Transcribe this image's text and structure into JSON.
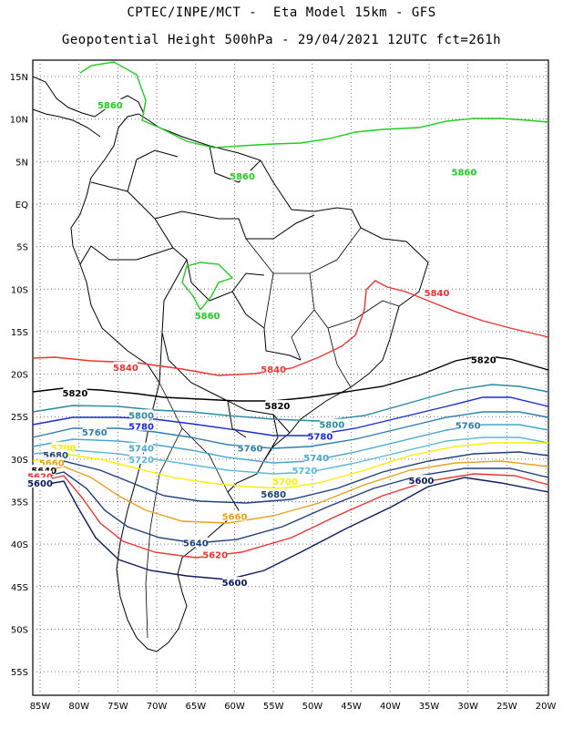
{
  "title": {
    "line1": "CPTEC/INPE/MCT -  Eta Model 15km - GFS",
    "line2": "Geopotential Height 500hPa - 29/04/2021 12UTC fct=261h"
  },
  "axes": {
    "lon_labels": [
      "85W",
      "80W",
      "75W",
      "70W",
      "65W",
      "60W",
      "55W",
      "50W",
      "45W",
      "40W",
      "35W",
      "30W",
      "25W",
      "20W"
    ],
    "lat_labels": [
      "15N",
      "10N",
      "5N",
      "EQ",
      "5S",
      "10S",
      "15S",
      "20S",
      "25S",
      "30S",
      "35S",
      "40S",
      "45S",
      "50S",
      "55S"
    ]
  },
  "colors": {
    "c5860": "#22cc22",
    "c5840": "#ee3333",
    "c5820": "#000000",
    "c5800": "#2a8aa0",
    "c5780": "#1a2ad8",
    "c5760": "#2f7fae",
    "c5740": "#46a6cc",
    "c5720": "#5ab8d8",
    "c5700": "#ffee00",
    "c5680": "#1f3f7a",
    "c5660": "#e8a020",
    "c5600": "#0a1a60"
  },
  "contour_labels": [
    {
      "text": "5860",
      "color": "c5860",
      "lon": -76,
      "lat": 11.7
    },
    {
      "text": "5860",
      "color": "c5860",
      "lon": -59,
      "lat": 3.3
    },
    {
      "text": "5860",
      "color": "c5860",
      "lon": -30.5,
      "lat": 3.8
    },
    {
      "text": "5860",
      "color": "c5860",
      "lon": -63.5,
      "lat": -13.1
    },
    {
      "text": "5840",
      "color": "c5840",
      "lon": -34,
      "lat": -10.4
    },
    {
      "text": "5840",
      "color": "c5840",
      "lon": -74,
      "lat": -19.2
    },
    {
      "text": "5840",
      "color": "c5840",
      "lon": -55,
      "lat": -19.4
    },
    {
      "text": "5820",
      "color": "c5820",
      "lon": -28,
      "lat": -18.3
    },
    {
      "text": "5820",
      "color": "c5820",
      "lon": -80.5,
      "lat": -22.2
    },
    {
      "text": "5820",
      "color": "c5820",
      "lon": -54.5,
      "lat": -23.7
    },
    {
      "text": "5800",
      "color": "c5800",
      "lon": -72,
      "lat": -24.8
    },
    {
      "text": "5800",
      "color": "c5800",
      "lon": -47.5,
      "lat": -25.9
    },
    {
      "text": "5780",
      "color": "c5780",
      "lon": -72,
      "lat": -26.1
    },
    {
      "text": "5780",
      "color": "c5780",
      "lon": -49,
      "lat": -27.3
    },
    {
      "text": "5760",
      "color": "c5760",
      "lon": -78,
      "lat": -26.8
    },
    {
      "text": "5760",
      "color": "c5760",
      "lon": -30,
      "lat": -26.0
    },
    {
      "text": "5760",
      "color": "c5760",
      "lon": -58,
      "lat": -28.7
    },
    {
      "text": "5740",
      "color": "c5740",
      "lon": -72,
      "lat": -28.7
    },
    {
      "text": "5740",
      "color": "c5740",
      "lon": -49.5,
      "lat": -29.8
    },
    {
      "text": "5720",
      "color": "c5720",
      "lon": -72,
      "lat": -30.0
    },
    {
      "text": "5720",
      "color": "c5720",
      "lon": -51,
      "lat": -31.3
    },
    {
      "text": "5700",
      "color": "c5700",
      "lon": -82,
      "lat": -28.6
    },
    {
      "text": "5700",
      "color": "c5700",
      "lon": -53.5,
      "lat": -32.6
    },
    {
      "text": "5680",
      "color": "c5680",
      "lon": -83,
      "lat": -29.5
    },
    {
      "text": "5680",
      "color": "c5680",
      "lon": -55,
      "lat": -34.1
    },
    {
      "text": "5660",
      "color": "c5660",
      "lon": -83.5,
      "lat": -30.4
    },
    {
      "text": "5660",
      "color": "c5660",
      "lon": -60,
      "lat": -36.7
    },
    {
      "text": "5640",
      "color": "c5640",
      "lon": -84.5,
      "lat": -31.3
    },
    {
      "text": "5640",
      "color": "c5680",
      "lon": -65,
      "lat": -39.8
    },
    {
      "text": "5620",
      "color": "c5840",
      "lon": -85,
      "lat": -32.0
    },
    {
      "text": "5620",
      "color": "c5840",
      "lon": -62.5,
      "lat": -41.2
    },
    {
      "text": "5600",
      "color": "c5600",
      "lon": -85,
      "lat": -32.8
    },
    {
      "text": "5600",
      "color": "c5600",
      "lon": -36,
      "lat": -32.5
    },
    {
      "text": "5600",
      "color": "c5600",
      "lon": -60,
      "lat": -44.5
    }
  ]
}
